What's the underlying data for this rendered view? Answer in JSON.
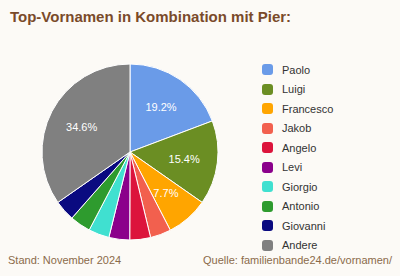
{
  "chart_data": {
    "type": "pie",
    "title": "Top-Vornamen in Kombination mit Pier:",
    "categories": [
      "Paolo",
      "Luigi",
      "Francesco",
      "Jakob",
      "Angelo",
      "Levi",
      "Giorgio",
      "Antonio",
      "Giovanni",
      "Andere"
    ],
    "values": [
      19.2,
      15.4,
      7.7,
      3.8,
      3.8,
      3.8,
      3.8,
      3.8,
      3.8,
      34.6
    ],
    "value_labels": [
      "19.2%",
      "15.4%",
      "7.7%",
      null,
      null,
      null,
      null,
      null,
      null,
      "34.6%"
    ],
    "data_labels": true,
    "colors": [
      "#6a9be8",
      "#6b8e23",
      "#ffa500",
      "#f2604e",
      "#dc143c",
      "#8b008b",
      "#40e0d0",
      "#2e9b2e",
      "#0a0a80",
      "#808080"
    ],
    "legend": "right",
    "annotations": [
      "Stand: November 2024",
      "Quelle: familienbande24.de/vornamen/"
    ]
  }
}
